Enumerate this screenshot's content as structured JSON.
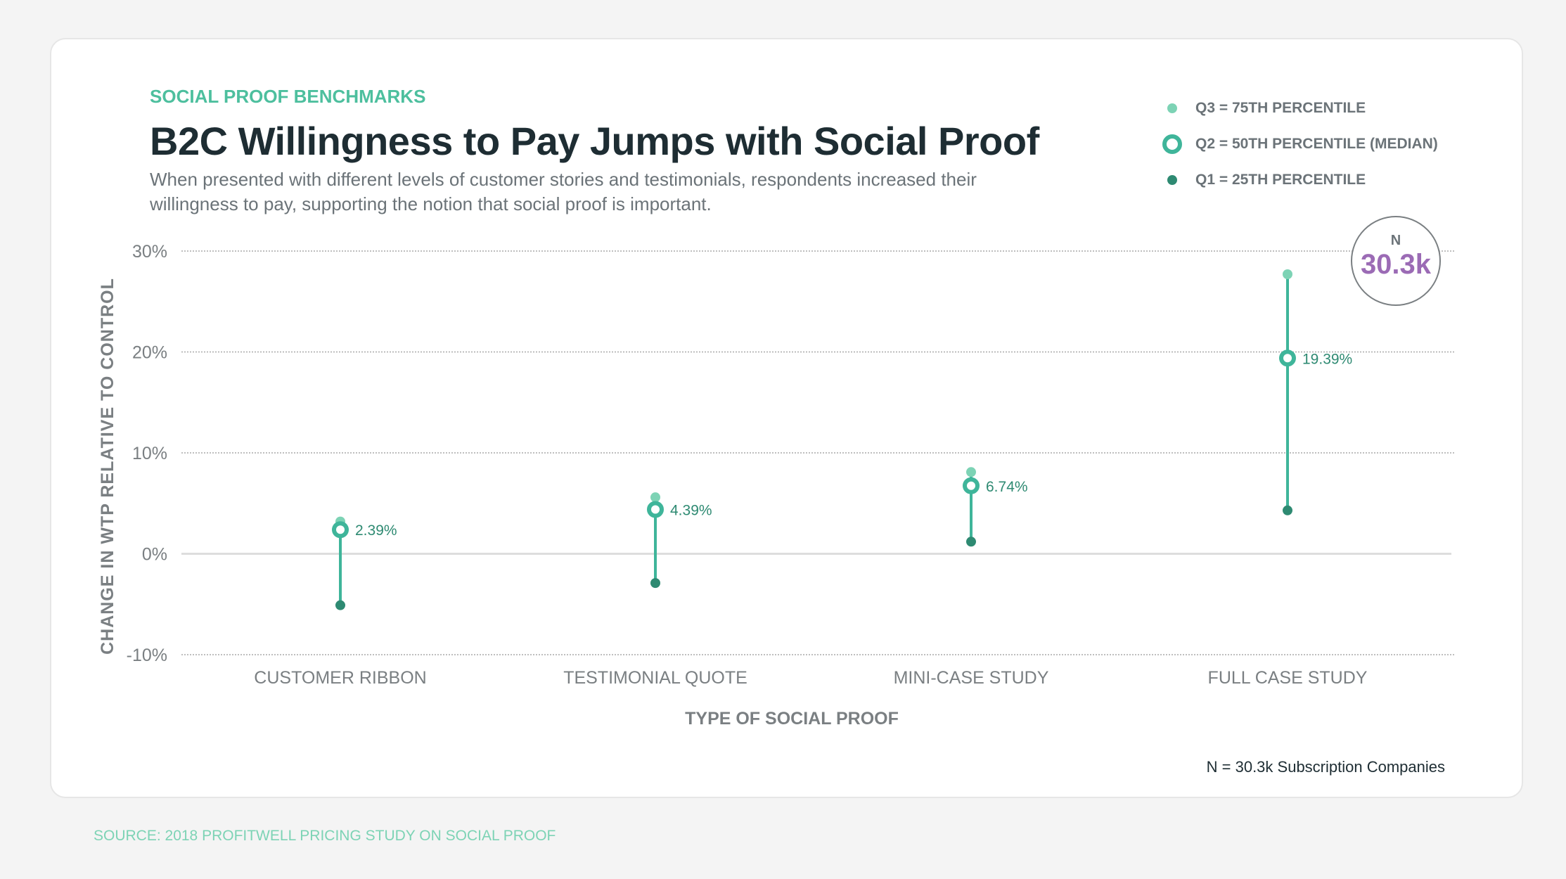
{
  "kicker": "SOCIAL PROOF BENCHMARKS",
  "title": "B2C Willingness to Pay Jumps with Social Proof",
  "subtitle": "When presented with different levels of customer stories and testimonials, respondents increased their willingness to pay, supporting the notion that social proof is important.",
  "legend": {
    "q3": "Q3 = 75TH PERCENTILE",
    "q2": "Q2 = 50TH PERCENTILE (MEDIAN)",
    "q1": "Q1 = 25TH PERCENTILE"
  },
  "n_badge": {
    "label": "N",
    "value": "30.3k"
  },
  "note": "N = 30.3k Subscription Companies",
  "source": "SOURCE: 2018 PROFITWELL PRICING STUDY ON SOCIAL PROOF",
  "colors": {
    "q3": "#7dd3b5",
    "q2": "#3fb59a",
    "q1": "#2e8a72",
    "accent": "#9b6bb5"
  },
  "chart_data": {
    "type": "dot-range",
    "xlabel": "TYPE OF SOCIAL PROOF",
    "ylabel": "CHANGE IN WTP RELATIVE TO CONTROL",
    "ylim": [
      -10,
      30
    ],
    "yticks": [
      30,
      20,
      10,
      0,
      -10
    ],
    "ytick_labels": [
      "30%",
      "20%",
      "10%",
      "0%",
      "-10%"
    ],
    "categories": [
      "CUSTOMER RIBBON",
      "TESTIMONIAL QUOTE",
      "MINI-CASE STUDY",
      "FULL CASE STUDY"
    ],
    "series": [
      {
        "name": "Q3",
        "values": [
          3.2,
          5.6,
          8.1,
          27.7
        ]
      },
      {
        "name": "Q2",
        "values": [
          2.39,
          4.39,
          6.74,
          19.39
        ]
      },
      {
        "name": "Q1",
        "values": [
          -5.1,
          -2.9,
          1.2,
          4.3
        ]
      }
    ],
    "data_labels": [
      "2.39%",
      "4.39%",
      "6.74%",
      "19.39%"
    ],
    "grid": true
  }
}
